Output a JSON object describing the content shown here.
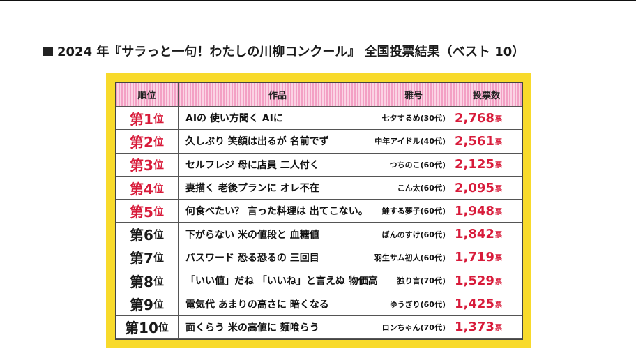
{
  "heading": "2024 年『サラっと一句！わたしの川柳コンクール』 全国投票結果（ベスト 10）",
  "table": {
    "columns": [
      "順位",
      "作品",
      "雅号",
      "投票数"
    ],
    "rank_suffix": "位",
    "vote_unit": "票",
    "rows": [
      {
        "rank": "第1",
        "work": "AIの 使い方聞く AIに",
        "pen_name": "七夕するめ(30代)",
        "votes": "2,768"
      },
      {
        "rank": "第2",
        "work": "久しぶり 笑顔は出るが 名前でず",
        "pen_name": "中年アイドル(40代)",
        "votes": "2,561"
      },
      {
        "rank": "第3",
        "work": "セルフレジ 母に店員 二人付く",
        "pen_name": "つちのこ(60代)",
        "votes": "2,125"
      },
      {
        "rank": "第4",
        "work": "妻描く 老後プランに オレ不在",
        "pen_name": "こん太(60代)",
        "votes": "2,095"
      },
      {
        "rank": "第5",
        "work": "何食べたい？ 言った料理は 出てこない。",
        "pen_name": "鮭する夢子(60代)",
        "votes": "1,948"
      },
      {
        "rank": "第6",
        "work": "下がらない 米の値段と 血糖値",
        "pen_name": "ばんのすけ(60代)",
        "votes": "1,842"
      },
      {
        "rank": "第7",
        "work": "パスワード 恐る恐るの 三回目",
        "pen_name": "羽生サム初人(60代)",
        "votes": "1,719"
      },
      {
        "rank": "第8",
        "work": "「いい値」だね 「いいね」と言えぬ 物価高",
        "pen_name": "独り言(70代)",
        "votes": "1,529"
      },
      {
        "rank": "第9",
        "work": "電気代 あまりの高さに 暗くなる",
        "pen_name": "ゆうぎり(60代)",
        "votes": "1,425"
      },
      {
        "rank": "第10",
        "work": "面くらう 米の高値に 麺喰らう",
        "pen_name": "ロンちゃん(70代)",
        "votes": "1,373"
      }
    ]
  },
  "colors": {
    "frame": "#f8da2b",
    "header": "#f3a0c4",
    "accent_red": "#d81b3a"
  }
}
